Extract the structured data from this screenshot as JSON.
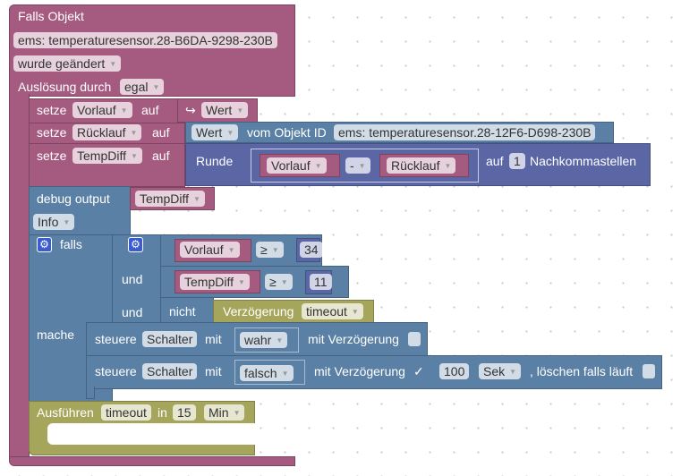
{
  "trigger": {
    "title": "Falls Objekt",
    "object_id": "ems: temperaturesensor.28-B6DA-9298-230B",
    "event": "wurde geändert",
    "trigger_label": "Auslösung durch",
    "trigger_value": "egal"
  },
  "set1": {
    "label": "setze",
    "var": "Vorlauf",
    "auf": "auf",
    "arrow": "↪",
    "value": "Wert"
  },
  "set2": {
    "label": "setze",
    "var": "Rücklauf",
    "auf": "auf",
    "value": "Wert",
    "of_label": "vom Objekt ID",
    "object_id": "ems: temperaturesensor.28-12F6-D698-230B"
  },
  "set3": {
    "label": "setze",
    "var": "TempDiff",
    "auf": "auf",
    "round": "Runde",
    "a": "Vorlauf",
    "op": "-",
    "b": "Rücklauf",
    "auf2": "auf",
    "decimals": "1",
    "decimals_label": "Nachkommastellen"
  },
  "debug": {
    "label": "debug output",
    "value": "TempDiff",
    "level": "Info"
  },
  "if": {
    "label": "falls",
    "and1": "und",
    "and2": "und",
    "then": "mache",
    "c1": {
      "var": "Vorlauf",
      "op": "≥",
      "num": "34"
    },
    "c2": {
      "var": "TempDiff",
      "op": "≥",
      "num": "11"
    },
    "c3": {
      "not": "nicht",
      "delay": "Verzögerung",
      "name": "timeout"
    }
  },
  "ctrl1": {
    "label": "steuere",
    "obj": "Schalter",
    "with": "mit",
    "value": "wahr",
    "delay_label": "mit Verzögerung",
    "delay_checked": false
  },
  "ctrl2": {
    "label": "steuere",
    "obj": "Schalter",
    "with": "mit",
    "value": "falsch",
    "delay_label": "mit Verzögerung",
    "check": "✓",
    "delay": "100",
    "unit": "Sek",
    "clear_label": ", löschen falls läuft",
    "clear_checked": false
  },
  "timeout": {
    "label": "Ausführen",
    "name": "timeout",
    "in": "in",
    "value": "15",
    "unit": "Min"
  },
  "colors": {
    "trigger": "#a55b80",
    "action": "#5b80a5",
    "math": "#5b67a5",
    "timer": "#a5a55b"
  }
}
